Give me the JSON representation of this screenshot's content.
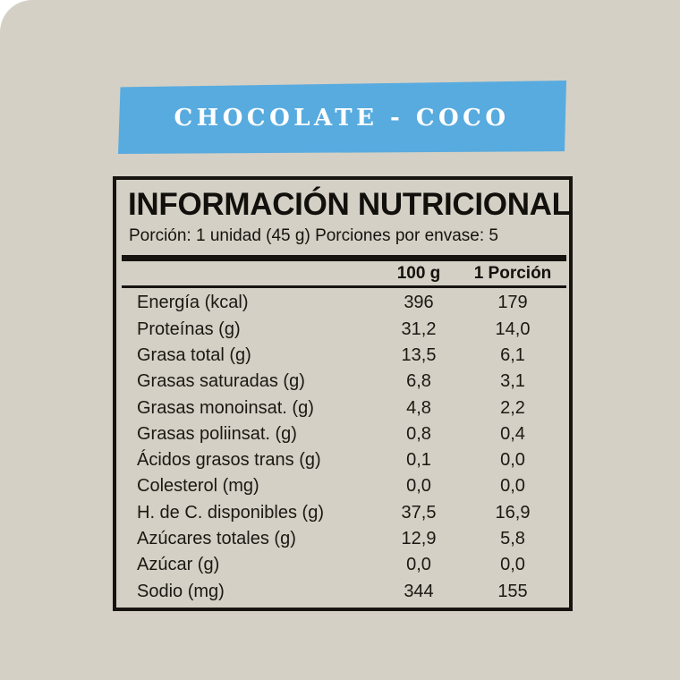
{
  "card": {
    "background": "#d4d0c5",
    "page_background": "#ffffff"
  },
  "banner": {
    "label": "CHOCOLATE - COCO",
    "background": "#58abdf",
    "text_color": "#ffffff"
  },
  "nutrition_label": {
    "title": "INFORMACIÓN NUTRICIONAL",
    "serving_info": "Porción: 1 unidad (45 g) Porciones por envase: 5",
    "border_color": "#161310",
    "columns": [
      "100 g",
      "1 Porción"
    ],
    "rows": [
      {
        "label": "Energía (kcal)",
        "per_100g": "396",
        "per_portion": "179"
      },
      {
        "label": "Proteínas (g)",
        "per_100g": "31,2",
        "per_portion": "14,0"
      },
      {
        "label": "Grasa total (g)",
        "per_100g": "13,5",
        "per_portion": "6,1"
      },
      {
        "label": "Grasas saturadas (g)",
        "per_100g": "6,8",
        "per_portion": "3,1"
      },
      {
        "label": "Grasas monoinsat. (g)",
        "per_100g": "4,8",
        "per_portion": "2,2"
      },
      {
        "label": "Grasas poliinsat. (g)",
        "per_100g": "0,8",
        "per_portion": "0,4"
      },
      {
        "label": "Ácidos grasos trans (g)",
        "per_100g": "0,1",
        "per_portion": "0,0"
      },
      {
        "label": "Colesterol (mg)",
        "per_100g": "0,0",
        "per_portion": "0,0"
      },
      {
        "label": "H. de C. disponibles (g)",
        "per_100g": "37,5",
        "per_portion": "16,9"
      },
      {
        "label": "Azúcares totales (g)",
        "per_100g": "12,9",
        "per_portion": "5,8"
      },
      {
        "label": "Azúcar (g)",
        "per_100g": "0,0",
        "per_portion": "0,0"
      },
      {
        "label": "Sodio (mg)",
        "per_100g": "344",
        "per_portion": "155"
      }
    ]
  }
}
